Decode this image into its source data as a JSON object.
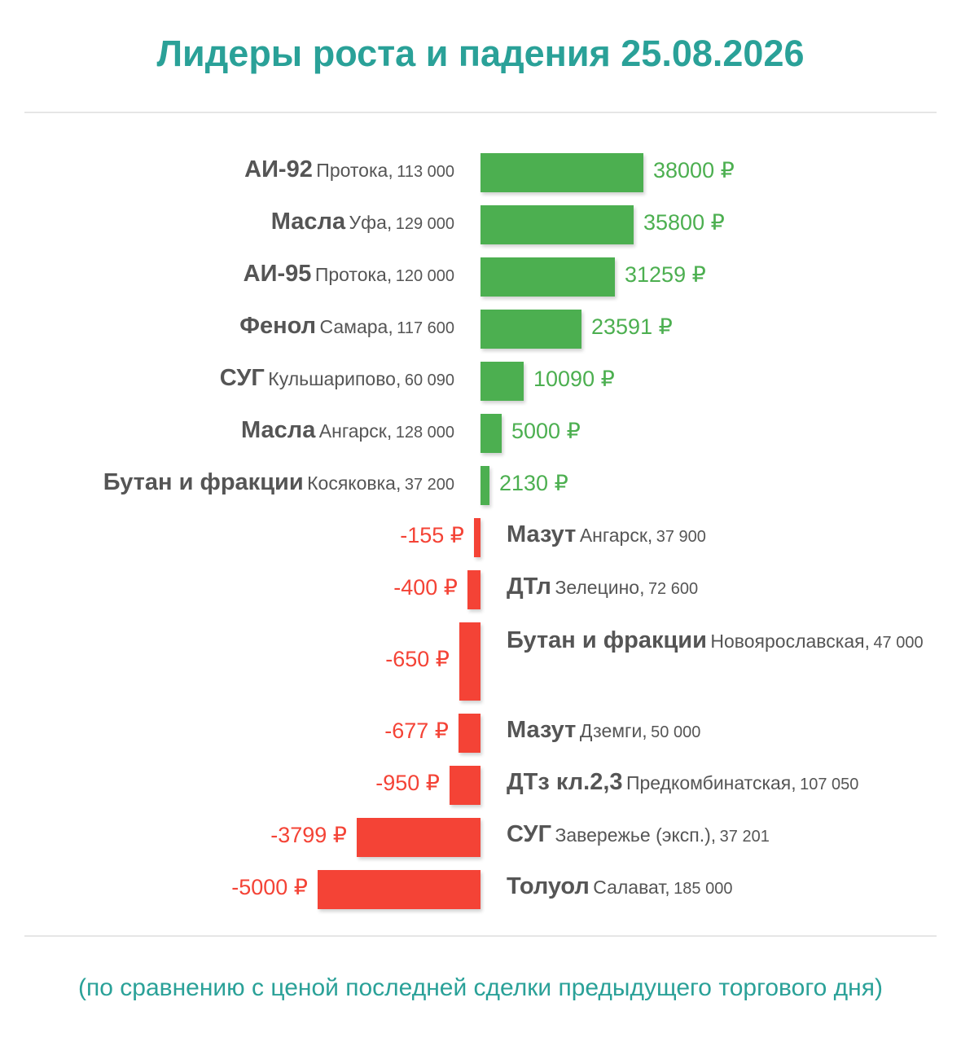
{
  "title": "Лидеры роста и падения 25.08.2026",
  "footer": "(по сравнению с ценой последней сделки предыдущего торгового дня)",
  "colors": {
    "title": "#2aa198",
    "increase": "#4caf50",
    "decrease": "#f44336",
    "label": "#555555"
  },
  "chart_data": {
    "type": "bar",
    "orientation": "horizontal",
    "unit": "₽",
    "xlim": [
      -5000,
      38000
    ],
    "grid": false,
    "legend": "none",
    "series": [
      {
        "values": [
          38000,
          35800,
          31259,
          23591,
          10090,
          5000,
          2130,
          -155,
          -400,
          -650,
          -677,
          -950,
          -3799,
          -5000
        ],
        "value_labels": [
          "38000 ₽",
          "35800 ₽",
          "31259 ₽",
          "23591 ₽",
          "10090 ₽",
          "5000 ₽",
          "2130 ₽",
          "-155 ₽",
          "-400 ₽",
          "-650 ₽",
          "-677 ₽",
          "-950 ₽",
          "-3799 ₽",
          "-5000 ₽"
        ]
      }
    ],
    "categories": [
      {
        "product": "АИ-92",
        "location": "Протока,",
        "volume": "113 000"
      },
      {
        "product": "Масла",
        "location": "Уфа,",
        "volume": "129 000"
      },
      {
        "product": "АИ-95",
        "location": "Протока,",
        "volume": "120 000"
      },
      {
        "product": "Фенол",
        "location": "Самара,",
        "volume": "117 600"
      },
      {
        "product": "СУГ",
        "location": "Кульшарипово,",
        "volume": "60 090"
      },
      {
        "product": "Масла",
        "location": "Ангарск,",
        "volume": "128 000"
      },
      {
        "product": "Бутан и фракции",
        "location": "Косяковка,",
        "volume": "37 200"
      },
      {
        "product": "Мазут",
        "location": "Ангарск,",
        "volume": "37 900"
      },
      {
        "product": "ДТл",
        "location": "Зелецино,",
        "volume": "72 600"
      },
      {
        "product": "Бутан и фракции",
        "location": "Новоярославская,",
        "volume": "47 000"
      },
      {
        "product": "Мазут",
        "location": "Дземги,",
        "volume": "50 000"
      },
      {
        "product": "ДТз кл.2,3",
        "location": "Предкомбинатская,",
        "volume": "107 050"
      },
      {
        "product": "СУГ",
        "location": "Заверeжье (эксп.),",
        "volume": "37 201"
      },
      {
        "product": "Толуол",
        "location": "Салават,",
        "volume": "185 000"
      }
    ]
  }
}
